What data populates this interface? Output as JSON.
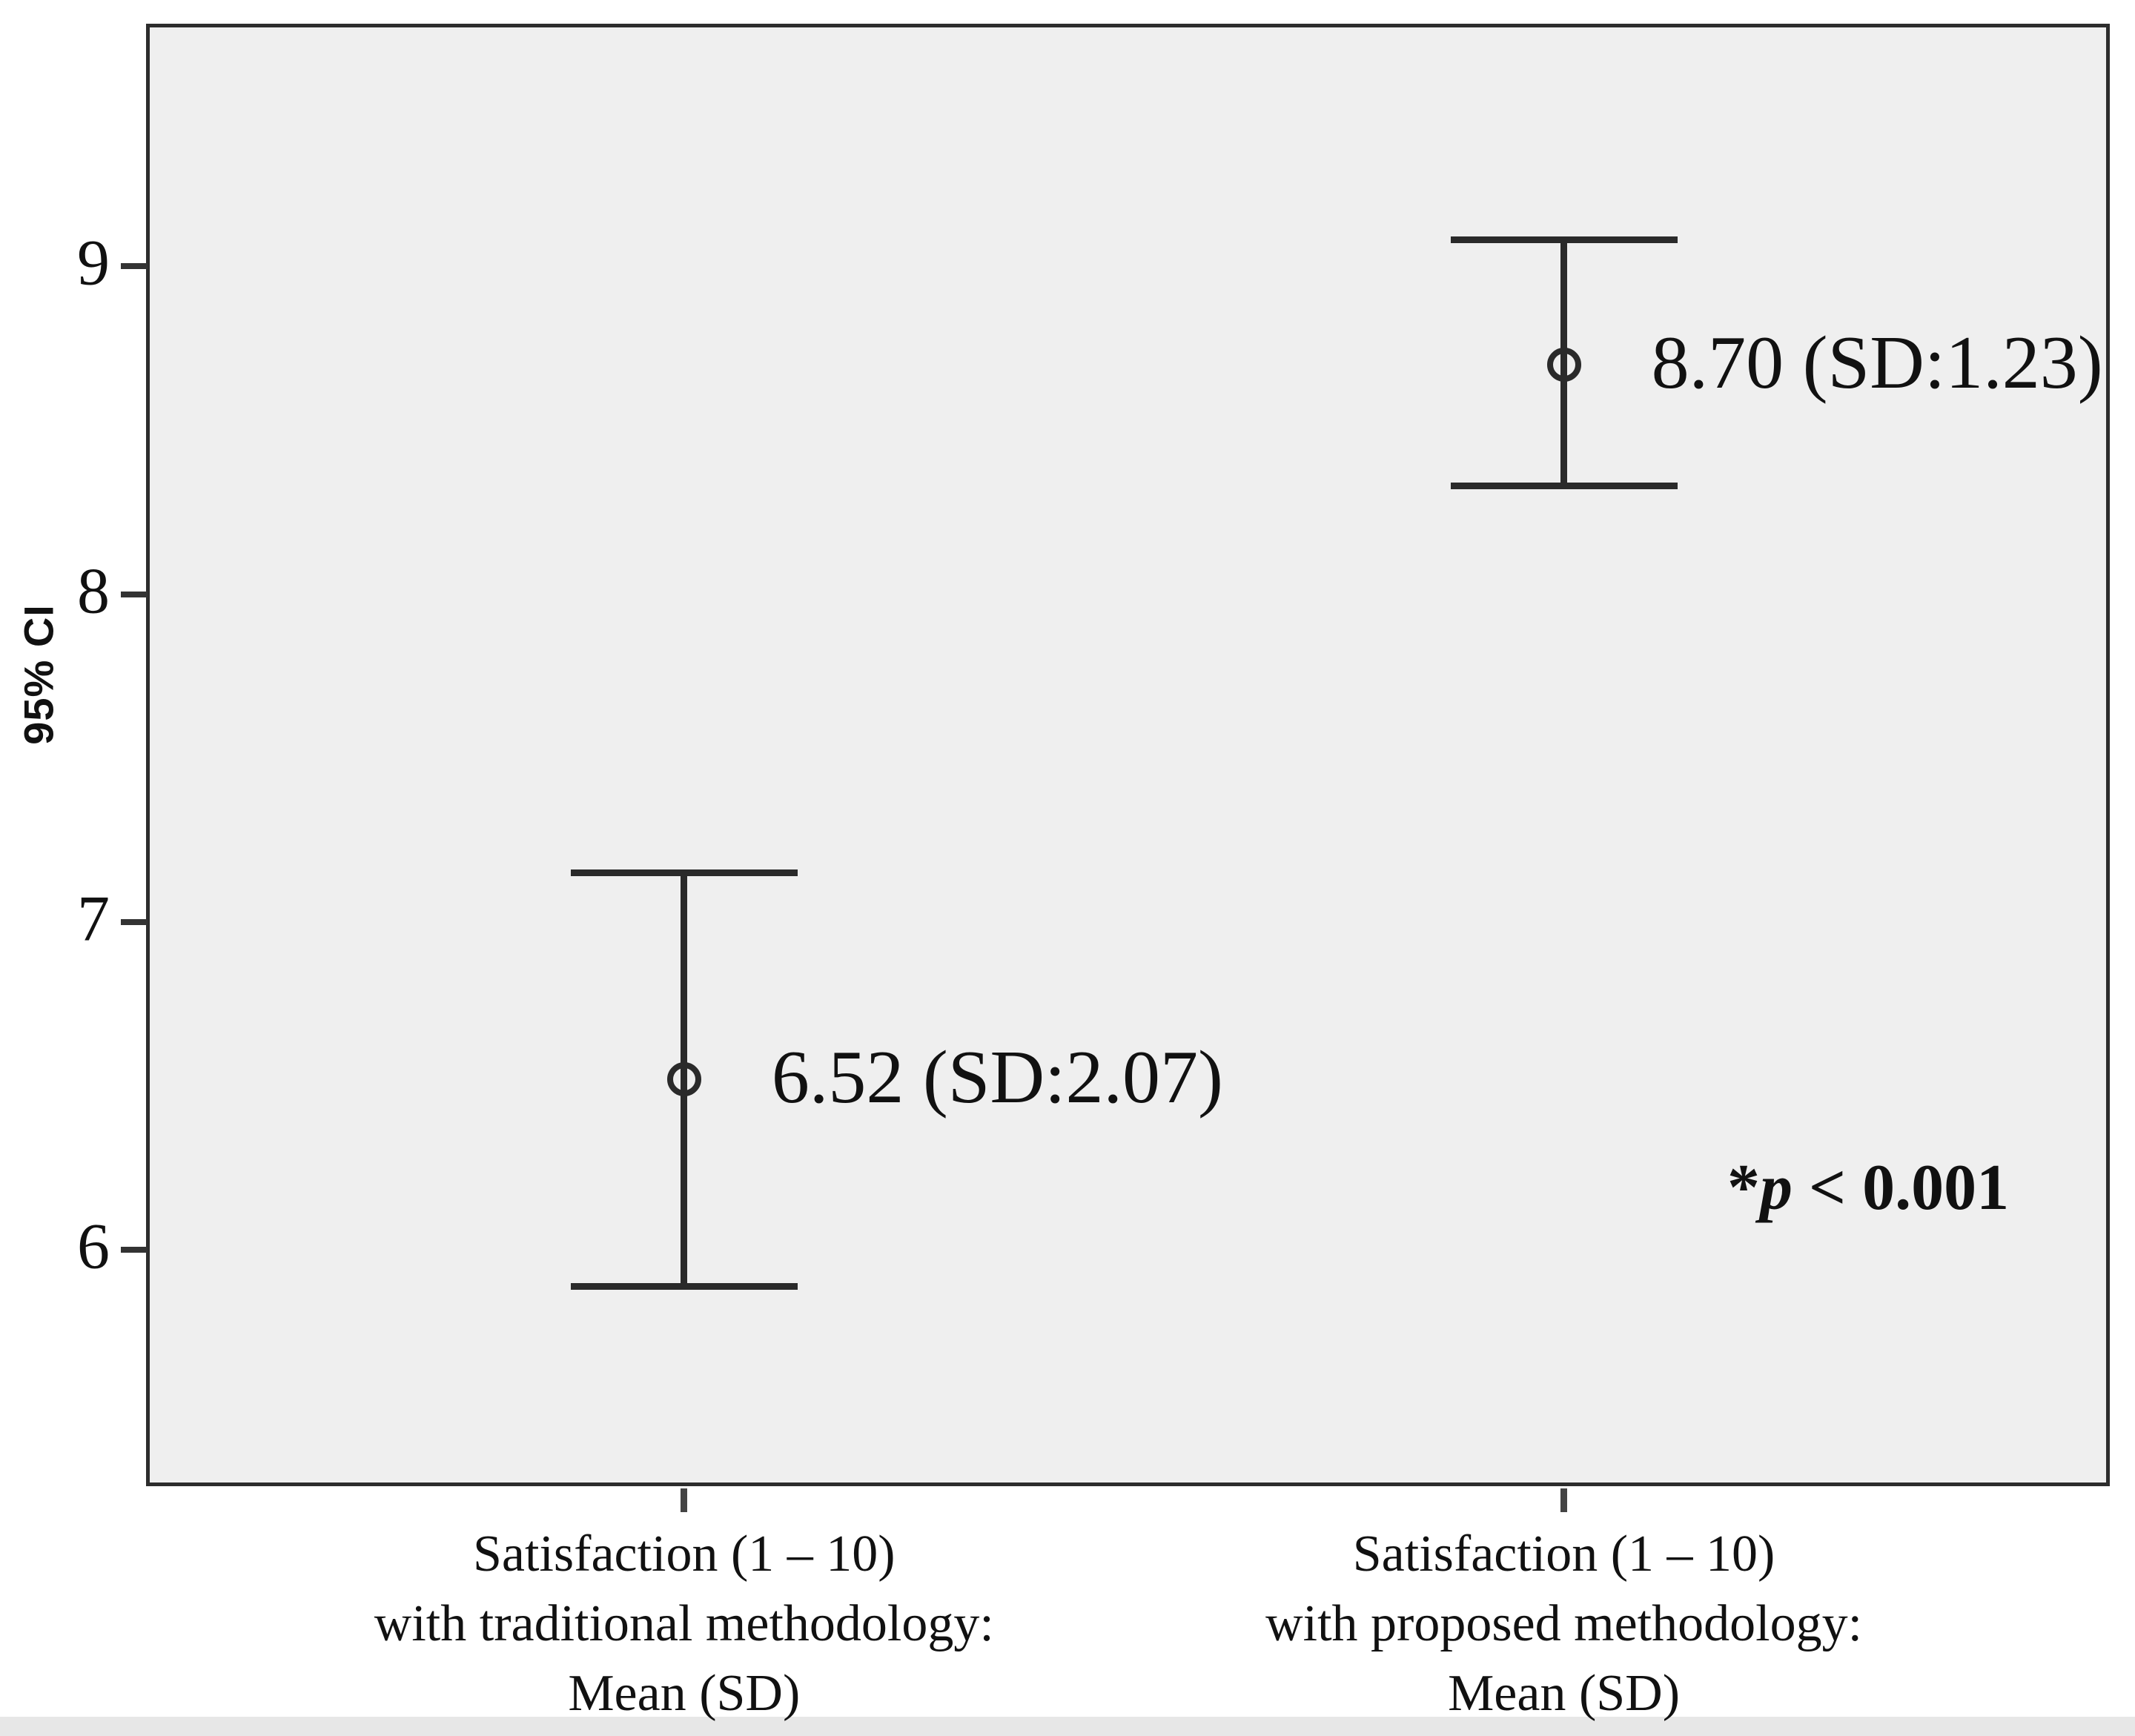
{
  "figure": {
    "background": "#ffffff",
    "plot_background": "#efefef",
    "border_color": "#2d2d2d",
    "line_color": "#2a2a2a",
    "text_color": "#111111"
  },
  "chart_data": {
    "type": "errorbar",
    "title": "",
    "xlabel": "",
    "ylabel": "95% CI",
    "ylim": [
      5.28,
      9.74
    ],
    "yticks": [
      6,
      7,
      8,
      9
    ],
    "grid": false,
    "legend": "none",
    "categories": [
      "Satisfaction (1 – 10) with traditional methodology: Mean (SD)",
      "Satisfaction (1 – 10) with proposed methodology: Mean (SD)"
    ],
    "series": [
      {
        "name": "traditional",
        "mean": 6.52,
        "sd": 2.07,
        "ci_low": 5.89,
        "ci_high": 7.15,
        "label": "6.52 (SD:2.07)",
        "x_frac": 0.274,
        "category_lines": [
          "Satisfaction (1 – 10)",
          "with traditional methodology:",
          "Mean (SD)"
        ]
      },
      {
        "name": "proposed",
        "mean": 8.7,
        "sd": 1.23,
        "ci_low": 8.33,
        "ci_high": 9.08,
        "label": "8.70 (SD:1.23)",
        "x_frac": 0.722,
        "category_lines": [
          "Satisfaction (1 – 10)",
          "with proposed methodology:",
          "Mean (SD)"
        ]
      }
    ],
    "annotation": {
      "star": "*",
      "symbol": "p",
      "rest": " < 0.001"
    }
  }
}
